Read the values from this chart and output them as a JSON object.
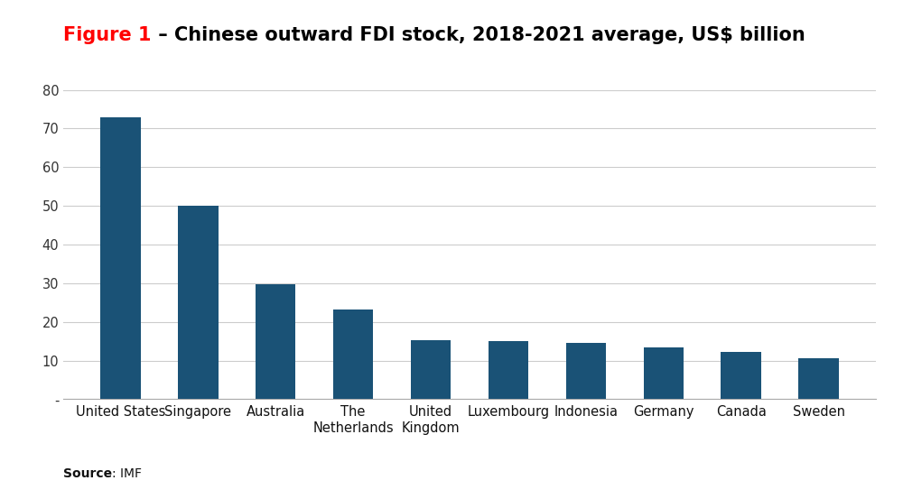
{
  "categories": [
    "United States",
    "Singapore",
    "Australia",
    "The\nNetherlands",
    "United\nKingdom",
    "Luxembourg",
    "Indonesia",
    "Germany",
    "Canada",
    "Sweden"
  ],
  "values": [
    73,
    50,
    29.8,
    23.3,
    15.2,
    15.0,
    14.5,
    13.5,
    12.3,
    10.7
  ],
  "bar_color": "#1A5276",
  "title_figure": "Figure 1",
  "title_rest": " – Chinese outward FDI stock, 2018-2021 average, US$ billion",
  "title_color_figure": "#FF0000",
  "title_color_rest": "#000000",
  "ylim": [
    0,
    80
  ],
  "yticks": [
    0,
    10,
    20,
    30,
    40,
    50,
    60,
    70,
    80
  ],
  "ytick_labels": [
    "-",
    "10",
    "20",
    "30",
    "40",
    "50",
    "60",
    "70",
    "80"
  ],
  "source_bold": "Source",
  "source_rest": ": IMF",
  "background_color": "#FFFFFF",
  "grid_color": "#CCCCCC",
  "title_fontsize": 15,
  "axis_fontsize": 10.5,
  "source_fontsize": 10,
  "bar_width": 0.52
}
